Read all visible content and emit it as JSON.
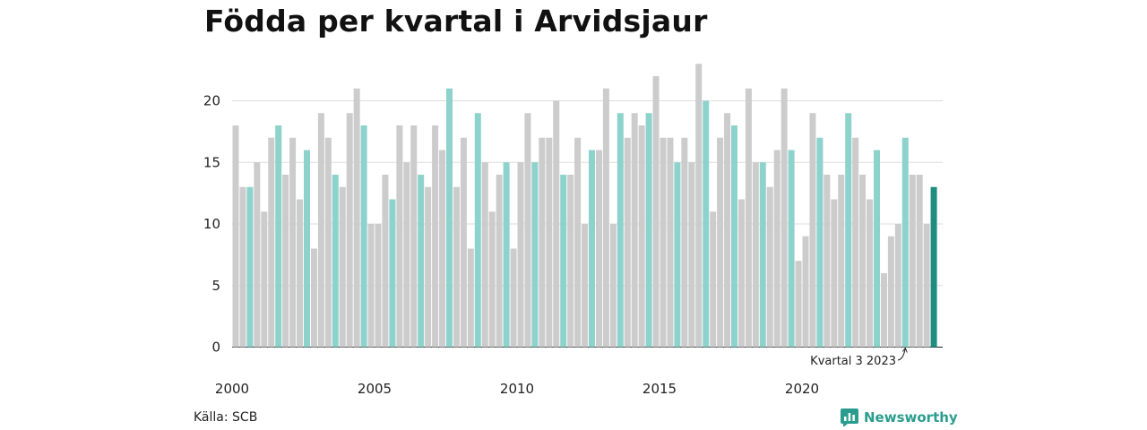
{
  "title": "Födda per kvartal i Arvidsjaur",
  "source": "Källa: SCB",
  "brand": {
    "name": "Newsworthy",
    "icon": "newsworthy-logo-icon",
    "color": "#2a9d8f"
  },
  "chart_data": {
    "type": "bar",
    "title": "Födda per kvartal i Arvidsjaur",
    "xlabel": "",
    "ylabel": "",
    "ylim": [
      0,
      23
    ],
    "yticks": [
      0,
      5,
      10,
      15,
      20
    ],
    "xtick_labels": [
      "2000",
      "2005",
      "2010",
      "2015",
      "2020"
    ],
    "grid": true,
    "start_year": 2000,
    "colors": {
      "default": "#cccccc",
      "q3": "#8dd3cc",
      "latest": "#1e8c7e"
    },
    "annotation": {
      "text": "Kvartal 3 2023",
      "target_index": 94
    },
    "values": [
      18,
      13,
      13,
      15,
      11,
      17,
      18,
      14,
      17,
      12,
      16,
      8,
      19,
      17,
      14,
      13,
      19,
      21,
      18,
      10,
      10,
      14,
      12,
      18,
      15,
      18,
      14,
      13,
      18,
      16,
      21,
      13,
      17,
      8,
      19,
      15,
      11,
      14,
      15,
      8,
      15,
      19,
      15,
      17,
      17,
      20,
      14,
      14,
      17,
      10,
      16,
      16,
      21,
      10,
      19,
      17,
      19,
      18,
      19,
      22,
      17,
      17,
      15,
      17,
      15,
      23,
      20,
      11,
      17,
      19,
      18,
      12,
      21,
      15,
      15,
      13,
      16,
      21,
      16,
      7,
      9,
      19,
      17,
      14,
      12,
      14,
      19,
      17,
      14,
      12,
      16,
      6,
      9,
      10,
      17,
      14,
      14,
      10,
      13
    ]
  }
}
